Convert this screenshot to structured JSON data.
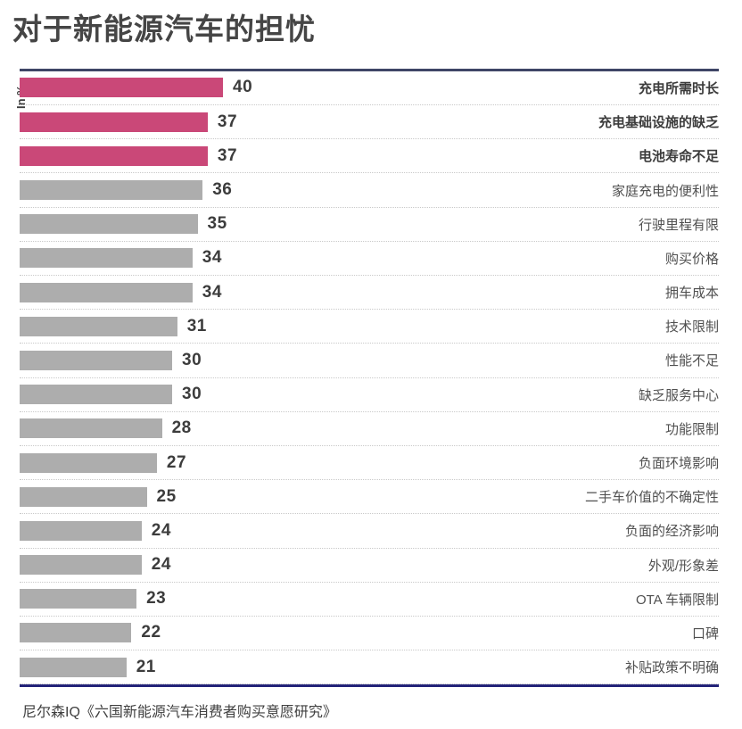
{
  "title": "对于新能源汽车的担忧",
  "axis_note": "In %",
  "source": "尼尔森IQ《六国新能源汽车消费者购买意愿研究》",
  "colors": {
    "accent_bar": "#ca4878",
    "default_bar": "#adadad",
    "frame_top": "#3e4566",
    "frame_bottom": "#232379",
    "text": "#3c3c3c"
  },
  "chart_data": {
    "type": "bar",
    "orientation": "horizontal",
    "title": "对于新能源汽车的担忧",
    "unit_label": "In %",
    "xlim": [
      0,
      40
    ],
    "grid": "dotted row separators",
    "legend": "none",
    "categories": [
      "充电所需时长",
      "充电基础设施的缺乏",
      "电池寿命不足",
      "家庭充电的便利性",
      "行驶里程有限",
      "购买价格",
      "拥车成本",
      "技术限制",
      "性能不足",
      "缺乏服务中心",
      "功能限制",
      "负面环境影响",
      "二手车价值的不确定性",
      "负面的经济影响",
      "外观/形象差",
      "OTA 车辆限制",
      "口碑",
      "补贴政策不明确"
    ],
    "values": [
      40,
      37,
      37,
      36,
      35,
      34,
      34,
      31,
      30,
      30,
      28,
      27,
      25,
      24,
      24,
      23,
      22,
      21
    ],
    "highlighted": [
      true,
      true,
      true,
      false,
      false,
      false,
      false,
      false,
      false,
      false,
      false,
      false,
      false,
      false,
      false,
      false,
      false,
      false
    ]
  }
}
